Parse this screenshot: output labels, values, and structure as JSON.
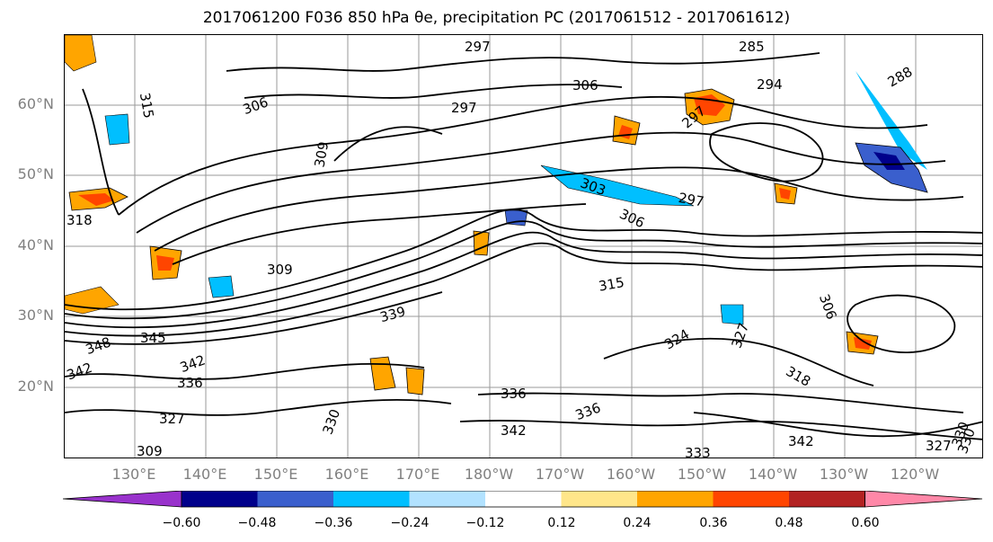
{
  "title": "2017061200 F036 850 hPa θe, precipitation PC (2017061512 - 2017061612)",
  "map": {
    "lat_labels": [
      "60°N",
      "50°N",
      "40°N",
      "30°N",
      "20°N"
    ],
    "lon_labels": [
      "130°E",
      "140°E",
      "150°E",
      "160°E",
      "170°E",
      "180°W",
      "170°W",
      "160°W",
      "150°W",
      "140°W",
      "130°W",
      "120°W"
    ],
    "contour_labels": [
      "297",
      "306",
      "297",
      "315",
      "288",
      "285",
      "294",
      "297",
      "306",
      "303",
      "297",
      "306",
      "318",
      "309",
      "315",
      "309",
      "339",
      "345",
      "348",
      "342",
      "342",
      "336",
      "330",
      "336",
      "342",
      "336",
      "324",
      "327",
      "318",
      "306",
      "330",
      "327",
      "342",
      "309",
      "333",
      "327",
      "330"
    ],
    "colors": {
      "contour": "#000000",
      "grid": "#9a9a9a"
    }
  },
  "colorbar": {
    "ticks": [
      "−0.60",
      "−0.48",
      "−0.36",
      "−0.24",
      "−0.12",
      "0.12",
      "0.24",
      "0.36",
      "0.48",
      "0.60"
    ],
    "colors": [
      "#9932CC",
      "#00008B",
      "#3A5FCD",
      "#00BFFF",
      "#B2E2FF",
      "#FFFFFF",
      "#FFE68A",
      "#FFA500",
      "#FF4500",
      "#B22222",
      "#FF88A8"
    ]
  }
}
